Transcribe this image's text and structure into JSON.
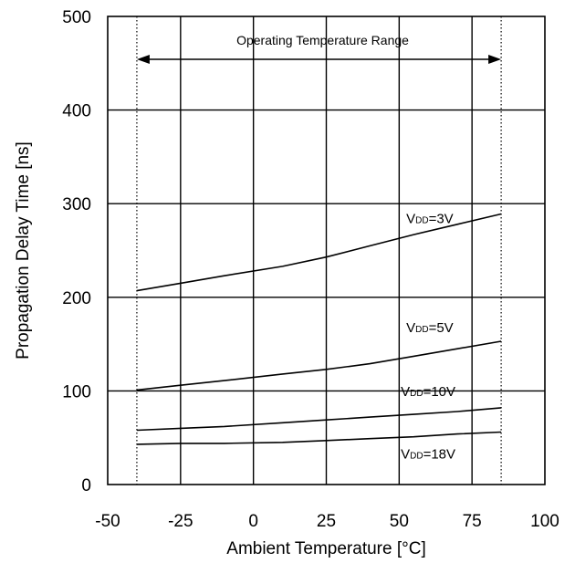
{
  "chart_data": {
    "type": "line",
    "title": "",
    "xlabel": "Ambient Temperature [°C]",
    "ylabel": "Propagation Delay Time [ns]",
    "xlim": [
      -50,
      100
    ],
    "ylim": [
      0,
      500
    ],
    "x_ticks": [
      "-50",
      "-25",
      "0",
      "25",
      "50",
      "75",
      "100"
    ],
    "y_ticks": [
      "0",
      "100",
      "200",
      "300",
      "400",
      "500"
    ],
    "grid": true,
    "annotation": {
      "text": "Operating Temperature Range",
      "range": [
        -40,
        85
      ]
    },
    "series": [
      {
        "label_main": "V",
        "label_sub": "DD",
        "label_rest": "=3V",
        "points": [
          [
            -40,
            207
          ],
          [
            -25,
            215
          ],
          [
            -10,
            223
          ],
          [
            10,
            233
          ],
          [
            25,
            243
          ],
          [
            40,
            255
          ],
          [
            55,
            267
          ],
          [
            70,
            278
          ],
          [
            85,
            289
          ]
        ]
      },
      {
        "label_main": "V",
        "label_sub": "DD",
        "label_rest": "=5V",
        "points": [
          [
            -40,
            101
          ],
          [
            -25,
            106
          ],
          [
            -10,
            111
          ],
          [
            10,
            118
          ],
          [
            25,
            123
          ],
          [
            40,
            129
          ],
          [
            55,
            137
          ],
          [
            70,
            145
          ],
          [
            85,
            153
          ]
        ]
      },
      {
        "label_main": "V",
        "label_sub": "DD",
        "label_rest": "=10V",
        "points": [
          [
            -40,
            58
          ],
          [
            -25,
            60
          ],
          [
            -10,
            62
          ],
          [
            10,
            66
          ],
          [
            25,
            69
          ],
          [
            40,
            72
          ],
          [
            55,
            75
          ],
          [
            70,
            78
          ],
          [
            85,
            82
          ]
        ]
      },
      {
        "label_main": "V",
        "label_sub": "DD",
        "label_rest": "=18V",
        "points": [
          [
            -40,
            43
          ],
          [
            -25,
            44
          ],
          [
            -10,
            44
          ],
          [
            10,
            45
          ],
          [
            25,
            47
          ],
          [
            40,
            49
          ],
          [
            55,
            51
          ],
          [
            70,
            54
          ],
          [
            85,
            56
          ]
        ]
      }
    ]
  }
}
